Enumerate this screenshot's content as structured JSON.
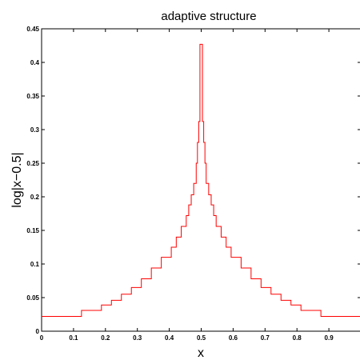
{
  "chart_data": {
    "type": "line",
    "title": "adaptive structure",
    "xlabel": "x",
    "ylabel": "log|x−0.5|",
    "xlim": [
      0,
      1
    ],
    "ylim": [
      0,
      0.45
    ],
    "xticks": [
      "0",
      "0.1",
      "0.2",
      "0.3",
      "0.4",
      "0.5",
      "0.6",
      "0.7",
      "0.8",
      "0.9"
    ],
    "yticks": [
      "0",
      "0.05",
      "0.1",
      "0.15",
      "0.2",
      "0.25",
      "0.3",
      "0.35",
      "0.4",
      "0.45"
    ],
    "grid": false,
    "legend": "none",
    "step": true,
    "line_color": "#ff0000",
    "series": [
      {
        "values": [
          [
            0,
            0.022
          ],
          [
            0.125,
            0.022
          ],
          [
            0.125,
            0.031
          ],
          [
            0.1875,
            0.031
          ],
          [
            0.1875,
            0.039
          ],
          [
            0.21875,
            0.039
          ],
          [
            0.21875,
            0.046
          ],
          [
            0.25,
            0.046
          ],
          [
            0.25,
            0.055
          ],
          [
            0.28125,
            0.055
          ],
          [
            0.28125,
            0.065
          ],
          [
            0.3125,
            0.065
          ],
          [
            0.3125,
            0.078
          ],
          [
            0.34375,
            0.078
          ],
          [
            0.34375,
            0.094
          ],
          [
            0.375,
            0.094
          ],
          [
            0.375,
            0.11
          ],
          [
            0.40625,
            0.11
          ],
          [
            0.40625,
            0.125
          ],
          [
            0.421875,
            0.125
          ],
          [
            0.421875,
            0.14
          ],
          [
            0.4375,
            0.14
          ],
          [
            0.4375,
            0.156
          ],
          [
            0.453125,
            0.156
          ],
          [
            0.453125,
            0.172
          ],
          [
            0.4609375,
            0.172
          ],
          [
            0.4609375,
            0.188
          ],
          [
            0.46875,
            0.188
          ],
          [
            0.46875,
            0.203
          ],
          [
            0.4765625,
            0.203
          ],
          [
            0.4765625,
            0.22
          ],
          [
            0.484375,
            0.22
          ],
          [
            0.484375,
            0.25
          ],
          [
            0.4882813,
            0.25
          ],
          [
            0.4882813,
            0.281
          ],
          [
            0.4921875,
            0.281
          ],
          [
            0.4921875,
            0.312
          ],
          [
            0.4960938,
            0.312
          ],
          [
            0.4960938,
            0.427
          ],
          [
            0.5039063,
            0.427
          ],
          [
            0.5039063,
            0.312
          ],
          [
            0.5078125,
            0.312
          ],
          [
            0.5078125,
            0.281
          ],
          [
            0.5117188,
            0.281
          ],
          [
            0.5117188,
            0.25
          ],
          [
            0.515625,
            0.25
          ],
          [
            0.515625,
            0.22
          ],
          [
            0.5234375,
            0.22
          ],
          [
            0.5234375,
            0.203
          ],
          [
            0.53125,
            0.203
          ],
          [
            0.53125,
            0.188
          ],
          [
            0.5390625,
            0.188
          ],
          [
            0.5390625,
            0.172
          ],
          [
            0.546875,
            0.172
          ],
          [
            0.546875,
            0.156
          ],
          [
            0.5625,
            0.156
          ],
          [
            0.5625,
            0.14
          ],
          [
            0.578125,
            0.14
          ],
          [
            0.578125,
            0.125
          ],
          [
            0.59375,
            0.125
          ],
          [
            0.59375,
            0.11
          ],
          [
            0.625,
            0.11
          ],
          [
            0.625,
            0.094
          ],
          [
            0.65625,
            0.094
          ],
          [
            0.65625,
            0.078
          ],
          [
            0.6875,
            0.078
          ],
          [
            0.6875,
            0.065
          ],
          [
            0.71875,
            0.065
          ],
          [
            0.71875,
            0.055
          ],
          [
            0.75,
            0.055
          ],
          [
            0.75,
            0.046
          ],
          [
            0.78125,
            0.046
          ],
          [
            0.78125,
            0.039
          ],
          [
            0.8125,
            0.039
          ],
          [
            0.8125,
            0.031
          ],
          [
            0.875,
            0.031
          ],
          [
            0.875,
            0.022
          ],
          [
            1.0,
            0.022
          ]
        ]
      }
    ]
  }
}
